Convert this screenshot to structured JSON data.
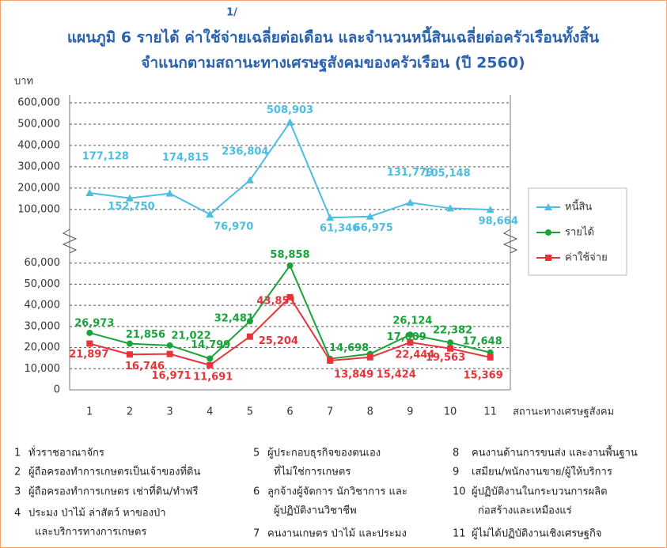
{
  "chart_data": [
    {
      "type": "line",
      "title": "แผนภูมิ 6 รายได้ ค่าใช้จ่ายเฉลี่ยต่อเดือน และจำนวนหนี้สินเฉลี่ยต่อครัวเรือนทั้งสิ้น",
      "title_note": "1/",
      "subtitle": "จำแนกตามสถานะทางเศรษฐสังคมของครัวเรือน (ปี 2560)",
      "y_label": "บาท",
      "ylim": [
        40000,
        600000
      ],
      "yticks": [
        {
          "value": 100000,
          "label": "100,000"
        },
        {
          "value": 200000,
          "label": "200,000"
        },
        {
          "value": 300000,
          "label": "300,000"
        },
        {
          "value": 400000,
          "label": "400,000"
        },
        {
          "value": 500000,
          "label": "500,000"
        },
        {
          "value": 600000,
          "label": "600,000"
        }
      ],
      "grid": true,
      "series": [
        {
          "name": "หนี้สิน",
          "color": "#4dbde0",
          "marker": "triangle",
          "values": [
            177128,
            152750,
            174815,
            76970,
            236804,
            508903,
            61346,
            66975,
            131779,
            105148,
            98664
          ],
          "value_labels": [
            "177,128",
            "152,750",
            "174,815",
            "76,970",
            "236,804",
            "508,903",
            "61,346",
            "66,975",
            "131,779",
            "105,148",
            "98,664"
          ]
        }
      ]
    },
    {
      "type": "line",
      "x_label": "สถานะทางเศรษฐสังคม",
      "categories": [
        "1",
        "2",
        "3",
        "4",
        "5",
        "6",
        "7",
        "8",
        "9",
        "10",
        "11"
      ],
      "ylim": [
        0,
        64000
      ],
      "yticks": [
        0,
        {
          "value": 10000,
          "label": "10,000"
        },
        {
          "value": 20000,
          "label": "20,000"
        },
        {
          "value": 30000,
          "label": "30,000"
        },
        {
          "value": 40000,
          "label": "40,000"
        },
        {
          "value": 50000,
          "label": "50,000"
        },
        {
          "value": 60000,
          "label": "60,000"
        }
      ],
      "grid": true,
      "series": [
        {
          "name": "รายได้",
          "color": "#1aa33a",
          "marker": "circle",
          "values": [
            26973,
            21856,
            21022,
            14799,
            32481,
            58858,
            14698,
            17009,
            26124,
            22382,
            17648
          ],
          "value_labels": [
            "26,973",
            "21,856",
            "21,022",
            "14,799",
            "32,481",
            "58,858",
            "14,698",
            "17,009",
            "26,124",
            "22,382",
            "17,648"
          ]
        },
        {
          "name": "ค่าใช้จ่าย",
          "color": "#e8333a",
          "marker": "square",
          "values": [
            21897,
            16746,
            16971,
            11691,
            25204,
            43851,
            13849,
            15424,
            22444,
            19563,
            15369
          ],
          "value_labels": [
            "21,897",
            "16,746",
            "16,971",
            "11,691",
            "25,204",
            "43,851",
            "13,849",
            "15,424",
            "22,444",
            "19,563",
            "15,369"
          ]
        }
      ]
    }
  ],
  "notes": [
    {
      "num": "1",
      "lines": [
        "ทั่วราชอาณาจักร"
      ]
    },
    {
      "num": "2",
      "lines": [
        "ผู้ถือครองทำการเกษตรเป็นเจ้าของที่ดิน"
      ]
    },
    {
      "num": "3",
      "lines": [
        "ผู้ถือครองทำการเกษตร เช่าที่ดิน/ทำฟรี"
      ]
    },
    {
      "num": "4",
      "lines": [
        "ประมง ป่าไม้ ล่าสัตว์ หาของป่า",
        "และบริการทางการเกษตร"
      ]
    },
    {
      "num": "5",
      "lines": [
        "ผู้ประกอบธุรกิจของตนเอง",
        "ที่ไม่ใช่การเกษตร"
      ]
    },
    {
      "num": "6",
      "lines": [
        "ลูกจ้างผู้จัดการ นักวิชาการ และ",
        "ผู้ปฏิบัติงานวิชาชีพ"
      ]
    },
    {
      "num": "7",
      "lines": [
        "คนงานเกษตร ป่าไม้ และประมง"
      ]
    },
    {
      "num": "8",
      "lines": [
        "คนงานด้านการขนส่ง และงานพื้นฐาน"
      ]
    },
    {
      "num": "9",
      "lines": [
        "เสมียน/พนักงานขาย/ผู้ให้บริการ"
      ]
    },
    {
      "num": "10",
      "lines": [
        "ผู้ปฏิบัติงานในกระบวนการผลิต",
        "ก่อสร้างและเหมืองแร่"
      ]
    },
    {
      "num": "11",
      "lines": [
        "ผู้ไม่ได้ปฏิบัติงานเชิงเศรษฐกิจ"
      ]
    }
  ]
}
